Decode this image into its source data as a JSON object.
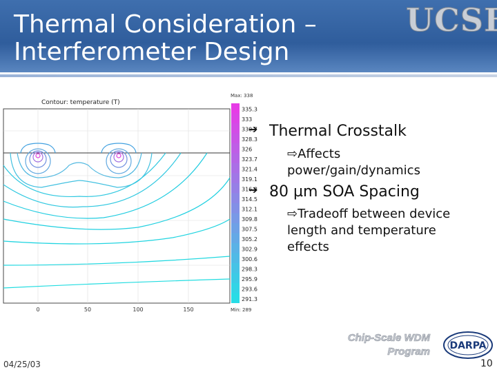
{
  "header": {
    "title": [
      "Thermal Consideration –",
      "Interferometer Design"
    ],
    "logo": "UCSB"
  },
  "figure": {
    "title": "Contour: temperature (T)",
    "max_label": "Max: 338",
    "min_label": "Min: 289",
    "colorbar_labels": [
      "335.3",
      "333",
      "330.7",
      "328.3",
      "326",
      "323.7",
      "321.4",
      "319.1",
      "316.8",
      "314.5",
      "312.1",
      "309.8",
      "307.5",
      "305.2",
      "302.9",
      "300.6",
      "298.3",
      "295.9",
      "293.6",
      "291.3"
    ],
    "x_ticks": [
      "0",
      "50",
      "100",
      "150"
    ]
  },
  "bullets": [
    {
      "text": "Thermal Crosstalk",
      "sub": [
        "Affects power/gain/dynamics"
      ]
    },
    {
      "text": "80 µm SOA Spacing",
      "sub": [
        "Tradeoff between device length and temperature effects"
      ]
    }
  ],
  "footer": {
    "date": "04/25/03",
    "program": [
      "Chip-Scale WDM",
      "Program"
    ],
    "sponsor": "DARPA",
    "page": "10"
  }
}
